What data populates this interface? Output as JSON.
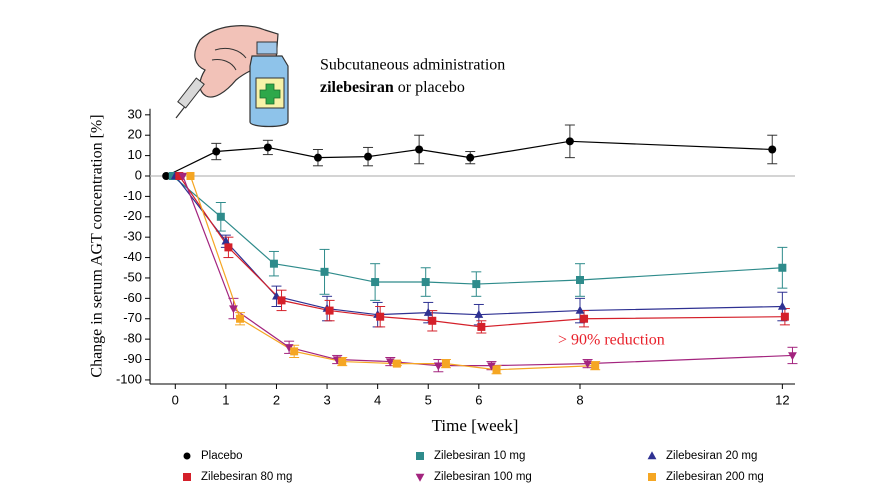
{
  "chart_data": {
    "type": "line",
    "header": {
      "line1": "Subcutaneous administration",
      "line2_bold": "zilebesiran",
      "line2_rest": "or placebo"
    },
    "xlabel": "Time [week]",
    "ylabel": "Change in serum AGT concentration [%]",
    "annotation": "> 90% reduction",
    "annotation_color": "#e8202a",
    "xlim": [
      -0.5,
      12.25
    ],
    "ylim": [
      -102,
      33
    ],
    "xticks": [
      0,
      1,
      2,
      3,
      4,
      5,
      6,
      8,
      12
    ],
    "yticks": [
      30,
      20,
      10,
      0,
      -10,
      -20,
      -30,
      -40,
      -50,
      -60,
      -70,
      -80,
      -90,
      -100
    ],
    "zero_line": true,
    "series": [
      {
        "name": "Placebo",
        "color": "#000000",
        "marker": "circle",
        "x": [
          -0.18,
          0.81,
          1.83,
          2.82,
          3.81,
          4.82,
          5.83,
          7.8,
          11.8
        ],
        "values": [
          0,
          12,
          14,
          9,
          9.5,
          13,
          9,
          17,
          13
        ],
        "errors": [
          null,
          4,
          3.5,
          4,
          4.5,
          7,
          3,
          8,
          7
        ]
      },
      {
        "name": "Zilebesiran 10 mg",
        "color": "#2e8b8b",
        "marker": "square",
        "x": [
          -0.05,
          0.9,
          1.95,
          2.95,
          3.95,
          4.95,
          5.95,
          8.0,
          12.0
        ],
        "values": [
          0,
          -20,
          -43,
          -47,
          -52,
          -52,
          -53,
          -51,
          -45
        ],
        "errors": [
          null,
          7,
          6,
          11,
          9,
          7,
          6,
          8,
          10
        ]
      },
      {
        "name": "Zilebesiran 20 mg",
        "color": "#2e3192",
        "marker": "triangle-up",
        "x": [
          0.0,
          1.0,
          2.0,
          3.0,
          4.0,
          5.0,
          6.0,
          8.0,
          12.0
        ],
        "values": [
          0,
          -32,
          -59,
          -65,
          -68,
          -67,
          -68,
          -66,
          -64
        ],
        "errors": [
          null,
          3,
          5,
          6,
          6,
          5,
          5,
          6,
          7
        ]
      },
      {
        "name": "Zilebesiran 80 mg",
        "color": "#d4202a",
        "marker": "square",
        "x": [
          0.08,
          1.05,
          2.1,
          3.05,
          4.05,
          5.08,
          6.05,
          8.08,
          12.05
        ],
        "values": [
          0,
          -35,
          -61,
          -66,
          -69,
          -71,
          -74,
          -70,
          -69
        ],
        "errors": [
          null,
          5,
          5,
          5,
          5,
          5,
          3,
          4,
          4
        ]
      },
      {
        "name": "Zilebesiran 100 mg",
        "color": "#a3247e",
        "marker": "triangle-down",
        "x": [
          0.15,
          1.15,
          2.25,
          3.2,
          4.25,
          5.2,
          6.25,
          8.15,
          12.2
        ],
        "values": [
          0,
          -65,
          -84,
          -90,
          -91,
          -93,
          -93,
          -92,
          -88
        ],
        "errors": [
          null,
          5,
          3,
          2,
          2,
          3,
          2,
          2,
          4
        ]
      },
      {
        "name": "Zilebesiran 200 mg",
        "color": "#f5a623",
        "marker": "square",
        "x": [
          0.3,
          1.28,
          2.35,
          3.3,
          4.38,
          5.35,
          6.35,
          8.3
        ],
        "values": [
          0,
          -70,
          -86,
          -91,
          -92,
          -92,
          -95,
          -93
        ],
        "errors": [
          null,
          3,
          3,
          2,
          1,
          2,
          2,
          2
        ]
      }
    ]
  }
}
